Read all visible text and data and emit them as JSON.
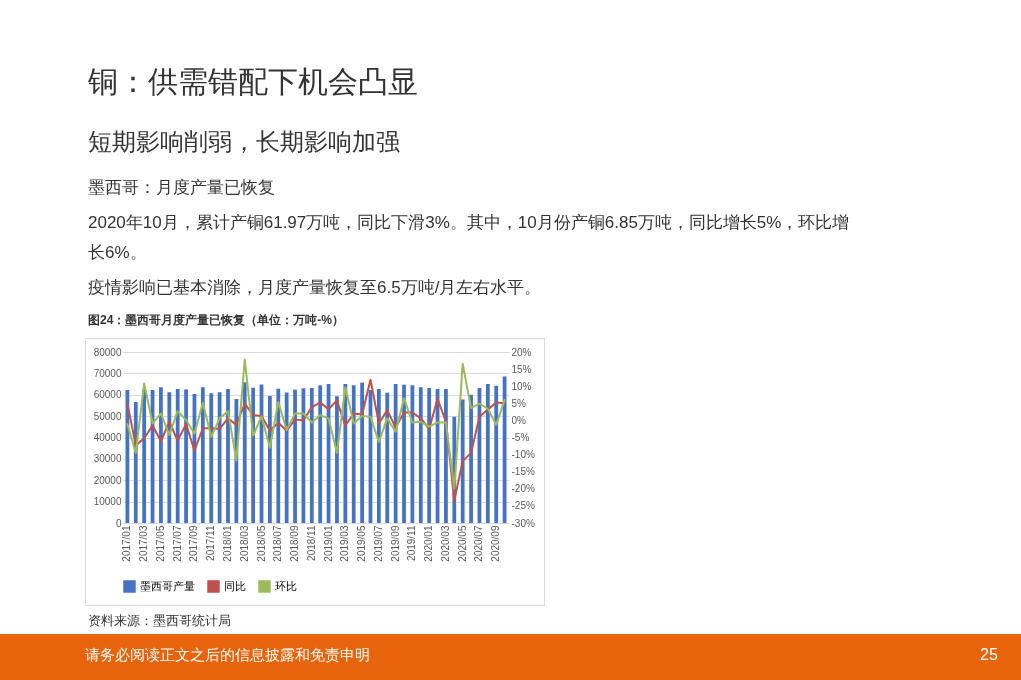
{
  "chart_data": {
    "type": "bar",
    "title": "图24：墨西哥月度产量已恢复（单位：万吨-%）",
    "categories": [
      "2017/01",
      null,
      "2017/03",
      null,
      "2017/05",
      null,
      "2017/07",
      null,
      "2017/09",
      null,
      "2017/11",
      null,
      "2018/01",
      null,
      "2018/03",
      null,
      "2018/05",
      null,
      "2018/07",
      null,
      "2018/09",
      null,
      "2018/11",
      null,
      "2019/01",
      null,
      "2019/03",
      null,
      "2019/05",
      null,
      "2019/07",
      null,
      "2019/09",
      null,
      "2019/11",
      null,
      "2020/01",
      null,
      "2020/03",
      null,
      "2020/05",
      null,
      "2020/07",
      null,
      "2020/09",
      null
    ],
    "series": [
      {
        "name": "墨西哥产量",
        "type": "bar",
        "color": "#4472c4",
        "values": [
          62200,
          56600,
          62500,
          62200,
          63500,
          61200,
          62700,
          62500,
          60400,
          63500,
          60700,
          61200,
          62700,
          58000,
          65800,
          63300,
          64800,
          59400,
          62800,
          61100,
          62400,
          63000,
          63200,
          64500,
          65000,
          59300,
          65000,
          64500,
          65700,
          62200,
          62700,
          60900,
          65000,
          64700,
          64500,
          63500,
          63200,
          62700,
          62700,
          49700,
          57800,
          60000,
          63200,
          65000,
          64200,
          68500
        ]
      },
      {
        "name": "同比",
        "type": "line",
        "axis": "y2",
        "color": "#c0504d",
        "values": [
          4.9,
          -7.3,
          -5.2,
          -1.5,
          -6.1,
          -0.4,
          -5.9,
          -1.1,
          -8.8,
          -2.3,
          -2.3,
          -2.5,
          0.6,
          -1.3,
          4.9,
          1.5,
          1.3,
          -3,
          -0.7,
          -3,
          0.3,
          0,
          3.9,
          5.2,
          3.3,
          5.8,
          -1.5,
          2,
          1.7,
          11.9,
          -0.9,
          3,
          -2.1,
          2.3,
          2.3,
          0.6,
          -2.5,
          6.3,
          -0.4,
          -23.5,
          -11.9,
          -9.5,
          1.1,
          3.2,
          5.2,
          5
        ]
      },
      {
        "name": "环比",
        "type": "line",
        "axis": "y2",
        "color": "#9bbb59",
        "values": [
          -1.1,
          -9.5,
          10.8,
          -0.9,
          2,
          -4.2,
          2.7,
          0.1,
          -3.9,
          5.1,
          -4.8,
          0.6,
          2.7,
          -11.7,
          17.8,
          -4.5,
          1.2,
          -8,
          5.4,
          -2.8,
          2,
          2,
          -0.6,
          1.5,
          0.6,
          -9.5,
          9.7,
          -0.9,
          1.3,
          1.1,
          -6.3,
          0.6,
          -3.3,
          6.5,
          -0.6,
          -0.4,
          -1.8,
          -0.6,
          -0.6,
          -20,
          16.6,
          3.6,
          4.9,
          3.4,
          -1.3,
          6
        ]
      }
    ],
    "ylim": [
      0,
      80000
    ],
    "yticks": [
      0,
      10000,
      20000,
      30000,
      40000,
      50000,
      60000,
      70000,
      80000
    ],
    "y2lim": [
      -30,
      20
    ],
    "y2ticks": [
      {
        "value": -30,
        "label": "-30%"
      },
      {
        "value": -25,
        "label": "-25%"
      },
      {
        "value": -20,
        "label": "-20%"
      },
      {
        "value": -15,
        "label": "-15%"
      },
      {
        "value": -10,
        "label": "-10%"
      },
      {
        "value": -5,
        "label": "-5%"
      },
      {
        "value": 0,
        "label": "0%"
      },
      {
        "value": 5,
        "label": "5%"
      },
      {
        "value": 10,
        "label": "10%"
      },
      {
        "value": 15,
        "label": "15%"
      },
      {
        "value": 20,
        "label": "20%"
      }
    ],
    "grid": "y",
    "legend": "bottom",
    "annotations": [
      "铜：供需错配下机会凸显",
      "短期影响削弱，长期影响加强",
      "墨西哥：月度产量已恢复",
      "2020年10月，累计产铜61.97万吨，同比下滑3%。其中，10月份产铜6.85万吨，同比增长5%，环比增长6%。",
      "疫情影响已基本消除，月度产量恢复至6.5万吨/月左右水平。",
      "资料来源：墨西哥统计局",
      "请务必阅读正文之后的信息披露和免责申明",
      "25"
    ]
  }
}
